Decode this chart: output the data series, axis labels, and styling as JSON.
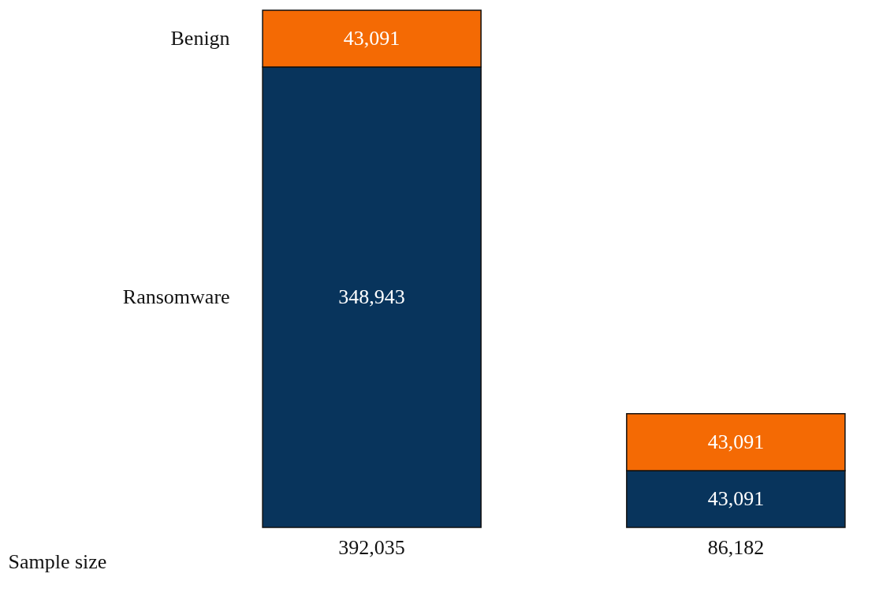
{
  "chart_data": {
    "type": "bar",
    "stacked": true,
    "xlabel": "Sample size",
    "categories": [
      "392,035",
      "86,182"
    ],
    "series": [
      {
        "name": "Ransomware",
        "color": "#08345c",
        "values": [
          348943,
          43091
        ],
        "value_labels": [
          "348,943",
          "43,091"
        ]
      },
      {
        "name": "Benign",
        "color": "#f46a04",
        "values": [
          43091,
          43091
        ],
        "value_labels": [
          "43,091",
          "43,091"
        ]
      }
    ],
    "legend": "left",
    "grid": false
  }
}
